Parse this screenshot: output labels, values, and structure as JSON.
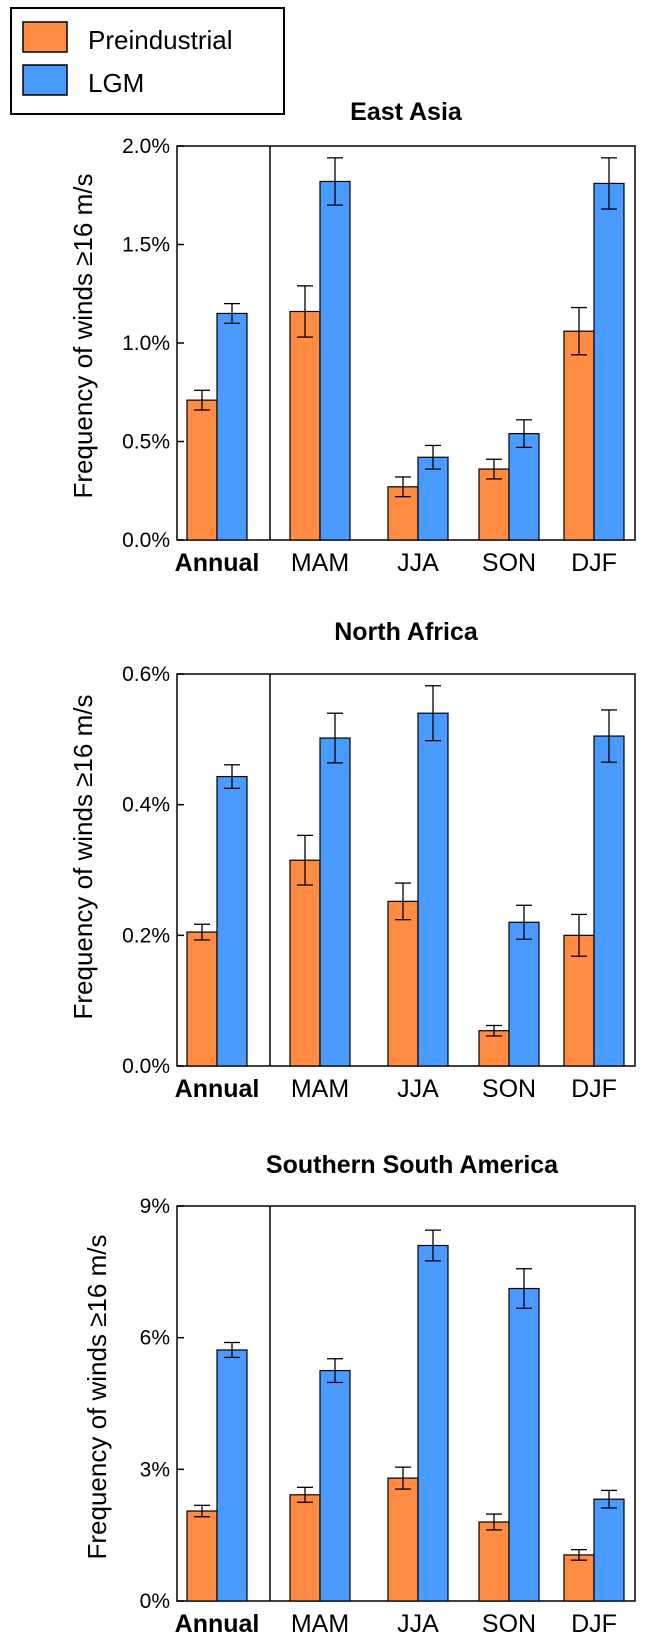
{
  "legend": {
    "entries": [
      {
        "label": "Preindustrial",
        "color": "#FF8C42"
      },
      {
        "label": "LGM",
        "color": "#4A9BFF"
      }
    ]
  },
  "chart_data": [
    {
      "type": "bar",
      "title": "East Asia",
      "ylabel": "Frequency of winds ≥16 m/s",
      "categories": [
        "Annual",
        "MAM",
        "JJA",
        "SON",
        "DJF"
      ],
      "ylim": [
        0,
        2.0
      ],
      "yticks": [
        "0.0%",
        "0.5%",
        "1.0%",
        "1.5%",
        "2.0%"
      ],
      "series": [
        {
          "name": "Preindustrial",
          "values": [
            0.71,
            1.16,
            0.27,
            0.36,
            1.06
          ],
          "errors": [
            0.05,
            0.13,
            0.05,
            0.05,
            0.12
          ]
        },
        {
          "name": "LGM",
          "values": [
            1.15,
            1.82,
            0.42,
            0.54,
            1.81
          ],
          "errors": [
            0.05,
            0.12,
            0.06,
            0.07,
            0.13
          ]
        }
      ]
    },
    {
      "type": "bar",
      "title": "North Africa",
      "ylabel": "Frequency of winds ≥16 m/s",
      "categories": [
        "Annual",
        "MAM",
        "JJA",
        "SON",
        "DJF"
      ],
      "ylim": [
        0,
        0.6
      ],
      "yticks": [
        "0.0%",
        "0.2%",
        "0.4%",
        "0.6%"
      ],
      "series": [
        {
          "name": "Preindustrial",
          "values": [
            0.205,
            0.315,
            0.252,
            0.054,
            0.2
          ],
          "errors": [
            0.012,
            0.038,
            0.028,
            0.008,
            0.032
          ]
        },
        {
          "name": "LGM",
          "values": [
            0.443,
            0.502,
            0.54,
            0.22,
            0.505
          ],
          "errors": [
            0.018,
            0.038,
            0.042,
            0.026,
            0.04
          ]
        }
      ]
    },
    {
      "type": "bar",
      "title": "Southern South America",
      "ylabel": "Frequency of winds ≥16 m/s",
      "categories": [
        "Annual",
        "MAM",
        "JJA",
        "SON",
        "DJF"
      ],
      "ylim": [
        0,
        9
      ],
      "yticks": [
        "0%",
        "3%",
        "6%",
        "9%"
      ],
      "series": [
        {
          "name": "Preindustrial",
          "values": [
            2.05,
            2.42,
            2.8,
            1.8,
            1.05
          ],
          "errors": [
            0.13,
            0.17,
            0.25,
            0.18,
            0.12
          ]
        },
        {
          "name": "LGM",
          "values": [
            5.72,
            5.25,
            8.1,
            7.12,
            2.32
          ],
          "errors": [
            0.17,
            0.27,
            0.35,
            0.45,
            0.2
          ]
        }
      ]
    }
  ]
}
